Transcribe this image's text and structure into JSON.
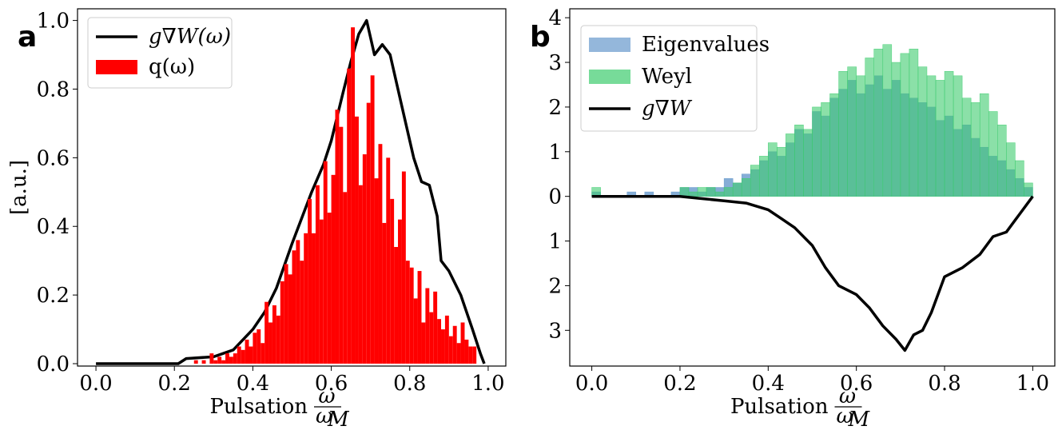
{
  "chart_data": [
    {
      "type": "histogram",
      "panel_label": "a",
      "y_label": "[a.u.]",
      "x_label": "Pulsation",
      "x_label_numerator": "ω",
      "x_label_denominator": "ω",
      "x_label_subscript": "M",
      "xlim": [
        -0.047,
        1.045
      ],
      "ylim": [
        -0.007,
        1.034
      ],
      "xticks": [
        {
          "value": 0,
          "label": "0.0"
        },
        0.2,
        0.4,
        0.6,
        0.8,
        {
          "value": 1,
          "label": "1.0"
        }
      ],
      "yticks": [
        {
          "value": 0,
          "label": "0.0"
        },
        0.2,
        0.4,
        0.6,
        0.8,
        {
          "value": 1,
          "label": "1.0"
        }
      ],
      "legend": "upper left",
      "series": [
        {
          "type": "line",
          "name": "g∇W(ω)",
          "color": "#000000",
          "x": [
            0,
            0.21,
            0.23,
            0.3,
            0.35,
            0.4,
            0.43,
            0.46,
            0.5,
            0.55,
            0.58,
            0.6,
            0.63,
            0.65,
            0.67,
            0.69,
            0.71,
            0.73,
            0.75,
            0.77,
            0.79,
            0.81,
            0.83,
            0.85,
            0.87,
            0.88,
            0.9,
            0.93,
            0.96,
            0.98,
            0.99
          ],
          "values": [
            0,
            0,
            0.015,
            0.02,
            0.04,
            0.1,
            0.15,
            0.22,
            0.35,
            0.5,
            0.58,
            0.65,
            0.79,
            0.88,
            0.96,
            1.0,
            0.9,
            0.93,
            0.9,
            0.8,
            0.7,
            0.6,
            0.53,
            0.52,
            0.43,
            0.3,
            0.27,
            0.2,
            0.1,
            0.03,
            0
          ]
        },
        {
          "type": "histogram",
          "name": "q(ω)",
          "color": "#ff0000",
          "bins": [
            0.25,
            0.26,
            0.27,
            0.28,
            0.29,
            0.3,
            0.31,
            0.32,
            0.33,
            0.34,
            0.35,
            0.36,
            0.37,
            0.38,
            0.39,
            0.4,
            0.41,
            0.42,
            0.43,
            0.44,
            0.45,
            0.46,
            0.47,
            0.48,
            0.49,
            0.5,
            0.51,
            0.52,
            0.53,
            0.54,
            0.55,
            0.56,
            0.57,
            0.58,
            0.59,
            0.6,
            0.61,
            0.62,
            0.63,
            0.64,
            0.65,
            0.66,
            0.67,
            0.68,
            0.69,
            0.7,
            0.71,
            0.72,
            0.73,
            0.74,
            0.75,
            0.76,
            0.77,
            0.78,
            0.79,
            0.8,
            0.81,
            0.82,
            0.83,
            0.84,
            0.85,
            0.86,
            0.87,
            0.88,
            0.89,
            0.9,
            0.91,
            0.92,
            0.93,
            0.94,
            0.95,
            0.96,
            0.97
          ],
          "values": [
            0.01,
            0,
            0.01,
            0,
            0.03,
            0.01,
            0.02,
            0.01,
            0.03,
            0.02,
            0.03,
            0.05,
            0.04,
            0.07,
            0.05,
            0.09,
            0.1,
            0.06,
            0.18,
            0.12,
            0.17,
            0.14,
            0.24,
            0.29,
            0.26,
            0.33,
            0.36,
            0.3,
            0.38,
            0.48,
            0.38,
            0.52,
            0.42,
            0.59,
            0.44,
            0.55,
            0.74,
            0.69,
            0.5,
            0.86,
            0.98,
            0.72,
            0.52,
            0.61,
            0.76,
            0.84,
            0.54,
            0.64,
            0.41,
            0.6,
            0.48,
            0.34,
            0.42,
            0.56,
            0.3,
            0.28,
            0.19,
            0.27,
            0.12,
            0.22,
            0.15,
            0.21,
            0.13,
            0.1,
            0.14,
            0.08,
            0.11,
            0.06,
            0.12,
            0.07,
            0.05,
            0.05
          ]
        }
      ]
    },
    {
      "type": "histogram",
      "panel_label": "b",
      "x_label": "Pulsation",
      "x_label_numerator": "ω",
      "x_label_denominator": "ω",
      "x_label_subscript": "M",
      "xlim": [
        -0.05,
        1.05
      ],
      "ylim": [
        -3.8,
        4.2
      ],
      "xticks": [
        {
          "value": 0,
          "label": "0.0"
        },
        0.2,
        0.4,
        0.6,
        0.8,
        {
          "value": 1,
          "label": "1.0"
        }
      ],
      "yticks": [
        4,
        3,
        2,
        1,
        0,
        {
          "value": -1,
          "label": "1"
        },
        {
          "value": -2,
          "label": "2"
        },
        {
          "value": -3,
          "label": "3"
        }
      ],
      "legend": "upper left",
      "series": [
        {
          "type": "histogram",
          "name": "Eigenvalues",
          "color": "#6699cc",
          "bins": [
            0,
            0.02,
            0.04,
            0.06,
            0.08,
            0.1,
            0.12,
            0.14,
            0.16,
            0.18,
            0.2,
            0.22,
            0.24,
            0.26,
            0.28,
            0.3,
            0.32,
            0.34,
            0.36,
            0.38,
            0.4,
            0.42,
            0.44,
            0.46,
            0.48,
            0.5,
            0.52,
            0.54,
            0.56,
            0.58,
            0.6,
            0.62,
            0.64,
            0.66,
            0.68,
            0.7,
            0.72,
            0.74,
            0.76,
            0.78,
            0.8,
            0.82,
            0.84,
            0.86,
            0.88,
            0.9,
            0.92,
            0.94,
            0.96,
            0.98,
            1.0
          ],
          "values": [
            0.1,
            0,
            0,
            0,
            0.1,
            0,
            0.1,
            0,
            0,
            0.1,
            0.2,
            0.2,
            0.1,
            0.2,
            0.2,
            0.4,
            0.3,
            0.5,
            0.6,
            0.8,
            1.0,
            0.9,
            1.2,
            1.5,
            1.4,
            1.9,
            1.8,
            2.2,
            2.4,
            2.6,
            2.3,
            2.5,
            2.7,
            2.4,
            2.6,
            2.3,
            2.2,
            2.1,
            2.0,
            1.7,
            1.8,
            1.5,
            1.6,
            1.3,
            1.1,
            0.9,
            0.8,
            0.6,
            0.4,
            0.2
          ]
        },
        {
          "type": "histogram",
          "name": "Weyl",
          "color": "#3dcc6e",
          "bins": [
            0,
            0.02,
            0.04,
            0.06,
            0.08,
            0.1,
            0.12,
            0.14,
            0.16,
            0.18,
            0.2,
            0.22,
            0.24,
            0.26,
            0.28,
            0.3,
            0.32,
            0.34,
            0.36,
            0.38,
            0.4,
            0.42,
            0.44,
            0.46,
            0.48,
            0.5,
            0.52,
            0.54,
            0.56,
            0.58,
            0.6,
            0.62,
            0.64,
            0.66,
            0.68,
            0.7,
            0.72,
            0.74,
            0.76,
            0.78,
            0.8,
            0.82,
            0.84,
            0.86,
            0.88,
            0.9,
            0.92,
            0.94,
            0.96,
            0.98,
            1.0
          ],
          "values": [
            0.2,
            0,
            0,
            0,
            0,
            0,
            0,
            0,
            0,
            0,
            0.2,
            0.1,
            0.2,
            0.2,
            0.1,
            0.2,
            0.3,
            0.4,
            0.7,
            0.9,
            1.2,
            1.1,
            1.4,
            1.6,
            1.5,
            2.0,
            2.1,
            2.3,
            2.8,
            2.9,
            2.7,
            3.1,
            3.3,
            3.4,
            3.0,
            3.2,
            3.3,
            2.9,
            2.7,
            2.6,
            2.8,
            2.7,
            2.2,
            2.1,
            2.3,
            1.9,
            1.6,
            1.2,
            0.8,
            0.3
          ]
        },
        {
          "type": "line",
          "name": "g∇W",
          "color": "#000000",
          "x": [
            0,
            0.2,
            0.25,
            0.3,
            0.35,
            0.4,
            0.43,
            0.46,
            0.5,
            0.53,
            0.56,
            0.6,
            0.63,
            0.66,
            0.69,
            0.71,
            0.73,
            0.75,
            0.77,
            0.8,
            0.84,
            0.88,
            0.91,
            0.94,
            0.97,
            1.0
          ],
          "values": [
            0,
            0,
            -0.05,
            -0.1,
            -0.15,
            -0.3,
            -0.5,
            -0.7,
            -1.1,
            -1.6,
            -2.0,
            -2.2,
            -2.5,
            -2.9,
            -3.2,
            -3.45,
            -3.1,
            -3.0,
            -2.6,
            -1.8,
            -1.6,
            -1.3,
            -0.9,
            -0.8,
            -0.4,
            0
          ]
        }
      ]
    }
  ]
}
